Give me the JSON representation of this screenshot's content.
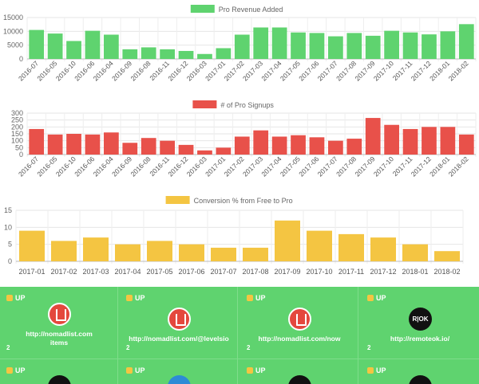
{
  "charts": [
    {
      "type": "bar",
      "title": "Pro Revenue Added",
      "color": "#5fd36f",
      "categories": [
        "2016-07",
        "2016-05",
        "2016-10",
        "2016-06",
        "2016-04",
        "2016-09",
        "2016-08",
        "2016-11",
        "2016-12",
        "2016-03",
        "2017-01",
        "2017-02",
        "2017-03",
        "2017-04",
        "2017-05",
        "2017-06",
        "2017-07",
        "2017-08",
        "2017-09",
        "2017-10",
        "2017-11",
        "2017-12",
        "2018-01",
        "2018-02"
      ],
      "values": [
        10500,
        9200,
        6500,
        10200,
        8800,
        3500,
        4200,
        3500,
        2900,
        1800,
        3900,
        8800,
        11400,
        11400,
        9600,
        9400,
        8200,
        9400,
        8400,
        10200,
        9600,
        8900,
        10000,
        12600
      ],
      "ylim": [
        0,
        15000
      ],
      "yticks": [
        0,
        5000,
        10000,
        15000
      ]
    },
    {
      "type": "bar",
      "title": "# of Pro Signups",
      "color": "#e8514a",
      "categories": [
        "2016-07",
        "2016-05",
        "2016-10",
        "2016-06",
        "2016-04",
        "2016-09",
        "2016-08",
        "2016-11",
        "2016-12",
        "2016-03",
        "2017-01",
        "2017-02",
        "2017-03",
        "2017-04",
        "2017-05",
        "2017-06",
        "2017-07",
        "2017-08",
        "2017-09",
        "2017-10",
        "2017-11",
        "2017-12",
        "2018-01",
        "2018-02"
      ],
      "values": [
        185,
        145,
        150,
        145,
        160,
        85,
        120,
        100,
        70,
        30,
        50,
        130,
        175,
        130,
        140,
        125,
        100,
        115,
        265,
        215,
        185,
        200,
        200,
        145
      ],
      "ylim": [
        0,
        300
      ],
      "yticks": [
        0,
        50,
        100,
        150,
        200,
        250,
        300
      ]
    },
    {
      "type": "bar",
      "title": "Conversion % from Free to Pro",
      "color": "#f4c542",
      "categories": [
        "2017-01",
        "2017-02",
        "2017-03",
        "2017-04",
        "2017-05",
        "2017-06",
        "2017-07",
        "2017-08",
        "2017-09",
        "2017-10",
        "2017-11",
        "2017-12",
        "2018-01",
        "2018-02"
      ],
      "values": [
        9,
        6,
        7,
        5,
        6,
        5,
        4,
        4,
        12,
        9,
        8,
        7,
        5,
        3
      ],
      "ylim": [
        0,
        15
      ],
      "yticks": [
        0,
        5,
        10,
        15
      ]
    }
  ],
  "cards": [
    {
      "up_label": "UP",
      "url": "http://nomadlist.com items",
      "url_line1": "http://nomadlist.com",
      "url_line2": "items",
      "count": "2",
      "logo": "nomadlist-logo"
    },
    {
      "up_label": "UP",
      "url_line1": "http://nomadlist.com/@levelsio",
      "url_line2": "",
      "count": "2",
      "logo": "nomadlist-logo"
    },
    {
      "up_label": "UP",
      "url_line1": "http://nomadlist.com/now",
      "url_line2": "",
      "count": "2",
      "logo": "nomadlist-logo"
    },
    {
      "up_label": "UP",
      "url_line1": "http://remoteok.io/",
      "url_line2": "",
      "count": "2",
      "logo": "remoteok-logo",
      "logo_text": "R|OK"
    },
    {
      "up_label": "UP",
      "logo": "black-round-logo"
    },
    {
      "up_label": "UP",
      "logo": "blue-logo"
    },
    {
      "up_label": "UP",
      "logo": "black-round-logo"
    },
    {
      "up_label": "UP",
      "logo": "black-round-logo"
    }
  ],
  "colors": {
    "card_bg": "#5fd36f",
    "thumb": "#f4c542"
  }
}
